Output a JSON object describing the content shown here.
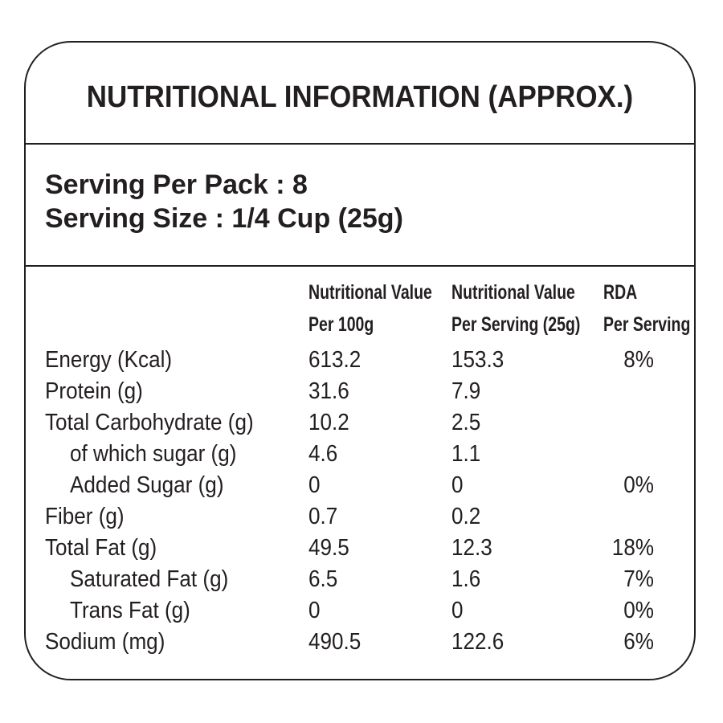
{
  "title": "NUTRITIONAL INFORMATION (APPROX.)",
  "serving": {
    "per_pack": "Serving Per Pack : 8",
    "size": "Serving Size : 1/4 Cup (25g)"
  },
  "columns": {
    "per_100g": [
      "Nutritional Value",
      "Per 100g"
    ],
    "per_serving": [
      "Nutritional Value",
      "Per Serving (25g)"
    ],
    "rda": [
      "RDA",
      "Per Serving"
    ]
  },
  "rows": [
    {
      "name": "Energy  (Kcal)",
      "indent": false,
      "per_100g": "613.2",
      "per_serving": "153.3",
      "rda": "8%"
    },
    {
      "name": "Protein (g)",
      "indent": false,
      "per_100g": "31.6",
      "per_serving": "7.9",
      "rda": ""
    },
    {
      "name": "Total Carbohydrate (g)",
      "indent": false,
      "per_100g": "10.2",
      "per_serving": "2.5",
      "rda": ""
    },
    {
      "name": "of which sugar (g)",
      "indent": true,
      "per_100g": "4.6",
      "per_serving": "1.1",
      "rda": ""
    },
    {
      "name": "Added Sugar (g)",
      "indent": true,
      "per_100g": "0",
      "per_serving": "0",
      "rda": "0%"
    },
    {
      "name": "Fiber (g)",
      "indent": false,
      "per_100g": "0.7",
      "per_serving": "0.2",
      "rda": ""
    },
    {
      "name": "Total Fat (g)",
      "indent": false,
      "per_100g": "49.5",
      "per_serving": "12.3",
      "rda": "18%"
    },
    {
      "name": "Saturated Fat (g)",
      "indent": true,
      "per_100g": "6.5",
      "per_serving": "1.6",
      "rda": "7%"
    },
    {
      "name": "Trans Fat (g)",
      "indent": true,
      "per_100g": "0",
      "per_serving": "0",
      "rda": "0%"
    },
    {
      "name": "Sodium (mg)",
      "indent": false,
      "per_100g": "490.5",
      "per_serving": "122.6",
      "rda": "6%"
    }
  ]
}
